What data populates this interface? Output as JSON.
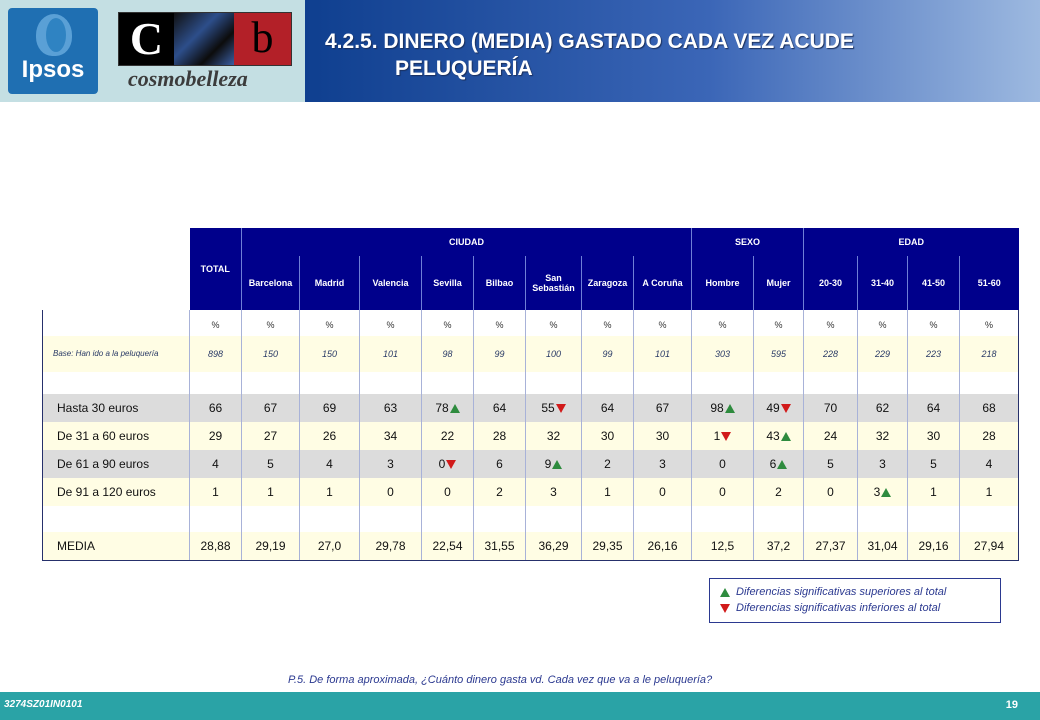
{
  "header": {
    "title_line1": "4.2.5. DINERO (MEDIA) GASTADO CADA VEZ ACUDE",
    "title_line2": "PELUQUERÍA",
    "logo_ipsos": "Ipsos",
    "logo_cb_c": "C",
    "logo_cb_b": "b",
    "logo_brand": "cosmobelleza"
  },
  "table": {
    "total_label": "TOTAL",
    "groups": {
      "ciudad": "CIUDAD",
      "sexo": "SEXO",
      "edad": "EDAD"
    },
    "columns": [
      "Barcelona",
      "Madrid",
      "Valencia",
      "Sevilla",
      "Bilbao",
      "San Sebastián",
      "Zaragoza",
      "A Coruña",
      "Hombre",
      "Mujer",
      "20-30",
      "31-40",
      "41-50",
      "51-60"
    ],
    "pct_row": [
      "%",
      "%",
      "%",
      "%",
      "%",
      "%",
      "%",
      "%",
      "%",
      "%",
      "%",
      "%",
      "%",
      "%",
      "%"
    ],
    "base": {
      "label": "Base: Han ido a la peluquería",
      "values": [
        "898",
        "150",
        "150",
        "101",
        "98",
        "99",
        "100",
        "99",
        "101",
        "303",
        "595",
        "228",
        "229",
        "223",
        "218"
      ]
    },
    "rows": [
      {
        "label": "Hasta 30 euros",
        "values": [
          "66",
          "67",
          "69",
          "63",
          "78",
          "64",
          "55",
          "64",
          "67",
          "98",
          "49",
          "70",
          "62",
          "64",
          "68"
        ],
        "marks": [
          "",
          "",
          "",
          "",
          "up",
          "",
          "down",
          "",
          "",
          "up",
          "down",
          "",
          "",
          "",
          ""
        ],
        "style": "gray"
      },
      {
        "label": "De 31 a 60 euros",
        "values": [
          "29",
          "27",
          "26",
          "34",
          "22",
          "28",
          "32",
          "30",
          "30",
          "1",
          "43",
          "24",
          "32",
          "30",
          "28"
        ],
        "marks": [
          "",
          "",
          "",
          "",
          "",
          "",
          "",
          "",
          "",
          "down",
          "up",
          "",
          "",
          "",
          ""
        ],
        "style": "yel"
      },
      {
        "label": "De 61 a 90 euros",
        "values": [
          "4",
          "5",
          "4",
          "3",
          "0",
          "6",
          "9",
          "2",
          "3",
          "0",
          "6",
          "5",
          "3",
          "5",
          "4"
        ],
        "marks": [
          "",
          "",
          "",
          "",
          "down",
          "",
          "up",
          "",
          "",
          "",
          "up",
          "",
          "",
          "",
          ""
        ],
        "style": "gray"
      },
      {
        "label": "De 91 a 120 euros",
        "values": [
          "1",
          "1",
          "1",
          "0",
          "0",
          "2",
          "3",
          "1",
          "0",
          "0",
          "2",
          "0",
          "3",
          "1",
          "1"
        ],
        "marks": [
          "",
          "",
          "",
          "",
          "",
          "",
          "",
          "",
          "",
          "",
          "",
          "",
          "up",
          "",
          ""
        ],
        "style": "yel"
      },
      {
        "label": "MEDIA",
        "values": [
          "28,88",
          "29,19",
          "27,0",
          "29,78",
          "22,54",
          "31,55",
          "36,29",
          "29,35",
          "26,16",
          "12,5",
          "37,2",
          "27,37",
          "31,04",
          "29,16",
          "27,94"
        ],
        "marks": [
          "",
          "",
          "",
          "",
          "",
          "",
          "",
          "",
          "",
          "",
          "",
          "",
          "",
          "",
          ""
        ],
        "style": "yel"
      }
    ]
  },
  "legend": {
    "up": "Diferencias significativas superiores al total",
    "down": "Diferencias significativas inferiores al total",
    "up_color": "#2e8b3e",
    "down_color": "#d11a1a"
  },
  "footnote": "P.5.   De forma aproximada, ¿Cuánto dinero gasta vd. Cada vez que va a le peluquería?",
  "footer": {
    "code": "3274SZ01IN0101",
    "page": "19"
  }
}
